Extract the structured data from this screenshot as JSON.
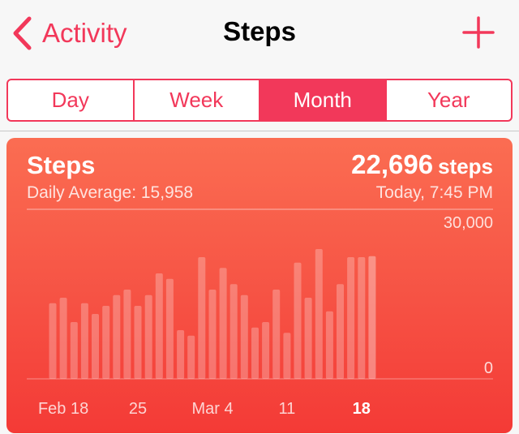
{
  "nav": {
    "back_label": "Activity",
    "title": "Steps",
    "back_icon": "chevron-left-icon",
    "add_icon": "plus-icon"
  },
  "segments": [
    {
      "label": "Day",
      "active": false
    },
    {
      "label": "Week",
      "active": false
    },
    {
      "label": "Month",
      "active": true
    },
    {
      "label": "Year",
      "active": false
    }
  ],
  "card": {
    "title": "Steps",
    "daily_average": "Daily Average: 15,958",
    "total": "22,696",
    "total_unit": "steps",
    "timestamp": "Today, 7:45 PM"
  },
  "colors": {
    "accent": "#f2385a",
    "card_top": "#fb6d52",
    "card_bottom": "#f43a36"
  },
  "chart_data": {
    "type": "bar",
    "ylim": [
      0,
      30000
    ],
    "ytick_labels": [
      "30,000",
      "0"
    ],
    "xtick_labels": [
      {
        "label": "Feb 18",
        "index": 1,
        "highlight": false
      },
      {
        "label": "25",
        "index": 8,
        "highlight": false
      },
      {
        "label": "Mar 4",
        "index": 15,
        "highlight": false
      },
      {
        "label": "11",
        "index": 22,
        "highlight": false
      },
      {
        "label": "18",
        "index": 29,
        "highlight": true
      }
    ],
    "values": [
      14000,
      15000,
      10500,
      14000,
      12000,
      13500,
      15500,
      16500,
      13500,
      15500,
      19500,
      18500,
      9000,
      8000,
      22500,
      16500,
      20500,
      17500,
      15500,
      9500,
      10500,
      16500,
      8500,
      21500,
      15000,
      24000,
      12500,
      17500,
      22500,
      22500,
      22696
    ]
  }
}
